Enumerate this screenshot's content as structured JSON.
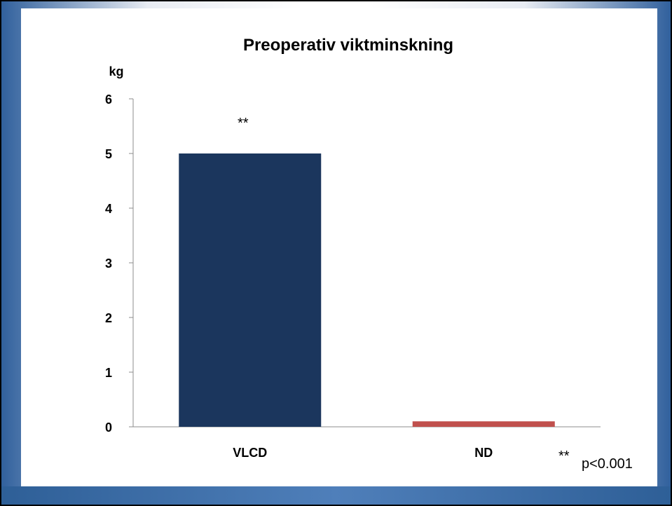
{
  "chart_data": {
    "type": "bar",
    "title": "Preoperativ viktminskning",
    "ylabel": "kg",
    "xlabel": "",
    "categories": [
      "VLCD",
      "ND"
    ],
    "values": [
      5,
      0.1
    ],
    "colors": [
      "#1b365d",
      "#c0504d"
    ],
    "ylim": [
      0,
      6
    ],
    "yticks": [
      0,
      1,
      2,
      3,
      4,
      5,
      6
    ],
    "grid": false,
    "bar_annotations": [
      "**",
      ""
    ],
    "footnote": {
      "marker": "**",
      "text": "p<0.001"
    }
  }
}
